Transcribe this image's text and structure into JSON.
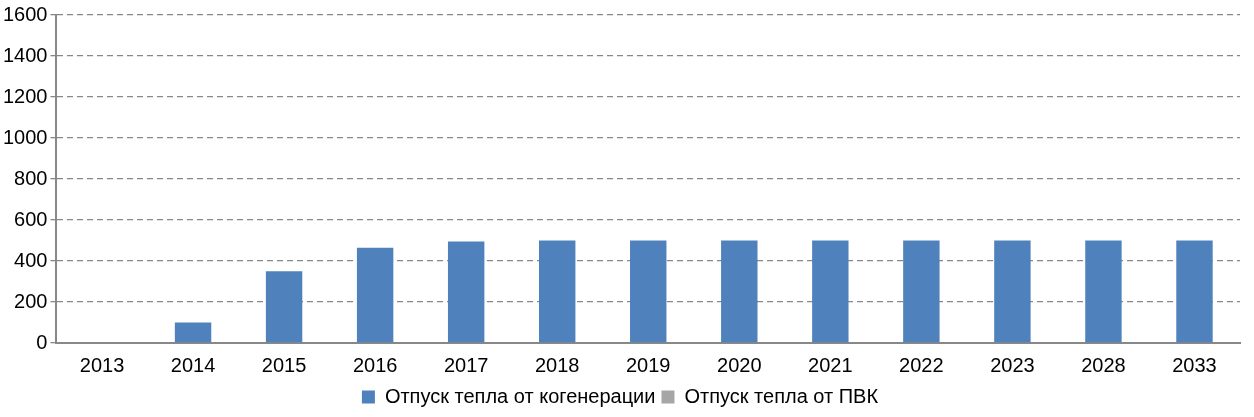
{
  "chart_data": {
    "type": "bar",
    "stacked": true,
    "categories": [
      "2013",
      "2014",
      "2015",
      "2016",
      "2017",
      "2018",
      "2019",
      "2020",
      "2021",
      "2022",
      "2023",
      "2028",
      "2033"
    ],
    "series": [
      {
        "name": "Отпуск тепла от когенерации",
        "color": "#4f81bd",
        "values": [
          0,
          100,
          350,
          465,
          495,
          500,
          500,
          500,
          500,
          500,
          500,
          500,
          500
        ]
      },
      {
        "name": "Отпуск тепла от ПВК",
        "color": "#a6a6a6",
        "values": [
          0,
          0,
          0,
          0,
          0,
          0,
          0,
          0,
          0,
          0,
          0,
          0,
          0
        ]
      }
    ],
    "ylim": [
      0,
      1600
    ],
    "yticks": [
      0,
      200,
      400,
      600,
      800,
      1000,
      1200,
      1400,
      1600
    ],
    "grid": "y",
    "legend": "bottom"
  }
}
